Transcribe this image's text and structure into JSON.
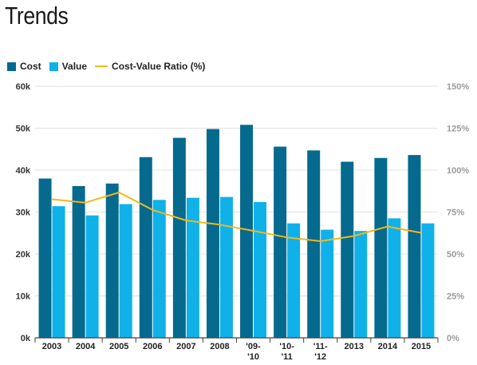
{
  "page": {
    "title": "Trends"
  },
  "colors": {
    "cost": "#056a8e",
    "value": "#10b1e9",
    "ratio": "#f2b71b",
    "grid": "#e1e1e1",
    "axis_text": "#9a9a9a"
  },
  "chart_data": {
    "type": "bar",
    "categories": [
      [
        "2003"
      ],
      [
        "2004"
      ],
      [
        "2005"
      ],
      [
        "2006"
      ],
      [
        "2007"
      ],
      [
        "2008"
      ],
      [
        "'09-",
        "'10"
      ],
      [
        "'10-",
        "'11"
      ],
      [
        "'11-",
        "'12"
      ],
      [
        "2013"
      ],
      [
        "2014"
      ],
      [
        "2015"
      ]
    ],
    "series": [
      {
        "name": "Cost",
        "type": "bar",
        "axis": "left",
        "color": "#056a8e",
        "values": [
          38000,
          36200,
          36800,
          43100,
          47700,
          49800,
          50800,
          45600,
          44700,
          42000,
          42900,
          43600
        ]
      },
      {
        "name": "Value",
        "type": "bar",
        "axis": "left",
        "color": "#10b1e9",
        "values": [
          31400,
          29200,
          31900,
          32900,
          33400,
          33600,
          32400,
          27300,
          25800,
          25500,
          28500,
          27300
        ]
      },
      {
        "name": "Cost-Value Ratio (%)",
        "type": "line",
        "axis": "right",
        "color": "#f2b71b",
        "values": [
          82.6,
          80.6,
          86.7,
          76.3,
          70.0,
          67.5,
          63.8,
          59.9,
          57.6,
          60.7,
          66.4,
          62.6
        ]
      }
    ],
    "y_left": {
      "min": 0,
      "max": 60000,
      "ticks": [
        "0k",
        "10k",
        "20k",
        "30k",
        "40k",
        "50k",
        "60k"
      ]
    },
    "y_right": {
      "min": 0,
      "max": 150,
      "ticks": [
        "0%",
        "25%",
        "50%",
        "75%",
        "100%",
        "125%",
        "150%"
      ]
    },
    "grid": true,
    "legend_position": "top-left"
  }
}
